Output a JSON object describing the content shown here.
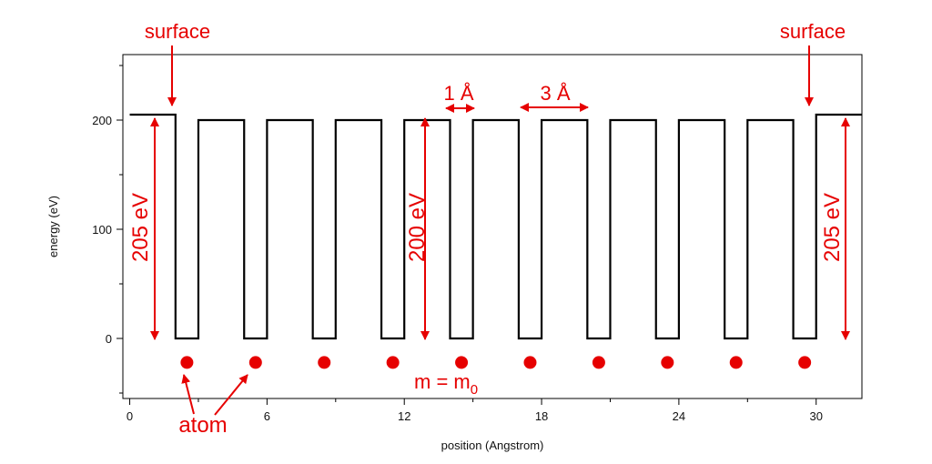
{
  "chart_data": {
    "type": "line",
    "title": "",
    "xlabel": "position (Angstrom)",
    "ylabel": "energy (eV)",
    "xlim": [
      -0.3,
      32
    ],
    "ylim": [
      -55,
      260
    ],
    "x_ticks": [
      0,
      6,
      12,
      18,
      24,
      30
    ],
    "y_ticks": [
      0,
      100,
      200
    ],
    "line_color": "#000000",
    "annotation_color": "#e60000",
    "series": [
      {
        "x": [
          0,
          2,
          2,
          3,
          3,
          5,
          5,
          6,
          6,
          8,
          8,
          9,
          9,
          11,
          11,
          12,
          12,
          14,
          14,
          15,
          15,
          17,
          17,
          18,
          18,
          20,
          20,
          21,
          21,
          23,
          23,
          24,
          24,
          26,
          26,
          27,
          27,
          29,
          29,
          30,
          30,
          32
        ],
        "y": [
          205,
          205,
          0,
          0,
          200,
          200,
          0,
          0,
          200,
          200,
          0,
          0,
          200,
          200,
          0,
          0,
          200,
          200,
          0,
          0,
          200,
          200,
          0,
          0,
          200,
          200,
          0,
          0,
          200,
          200,
          0,
          0,
          200,
          200,
          0,
          0,
          200,
          200,
          0,
          0,
          205,
          205
        ]
      }
    ],
    "atoms": {
      "x": [
        2.5,
        5.5,
        8.5,
        11.5,
        14.5,
        17.5,
        20.5,
        23.5,
        26.5,
        29.5
      ],
      "y": -22
    },
    "annotations": {
      "surface_label": "surface",
      "one_angstrom_label": "1 Å",
      "three_angstrom_label": "3 Å",
      "left_barrier_label": "205 eV",
      "middle_barrier_label": "200 eV",
      "right_barrier_label": "205 eV",
      "mass_label": "m = m",
      "mass_subscript": "0",
      "atom_label": "atom"
    }
  }
}
